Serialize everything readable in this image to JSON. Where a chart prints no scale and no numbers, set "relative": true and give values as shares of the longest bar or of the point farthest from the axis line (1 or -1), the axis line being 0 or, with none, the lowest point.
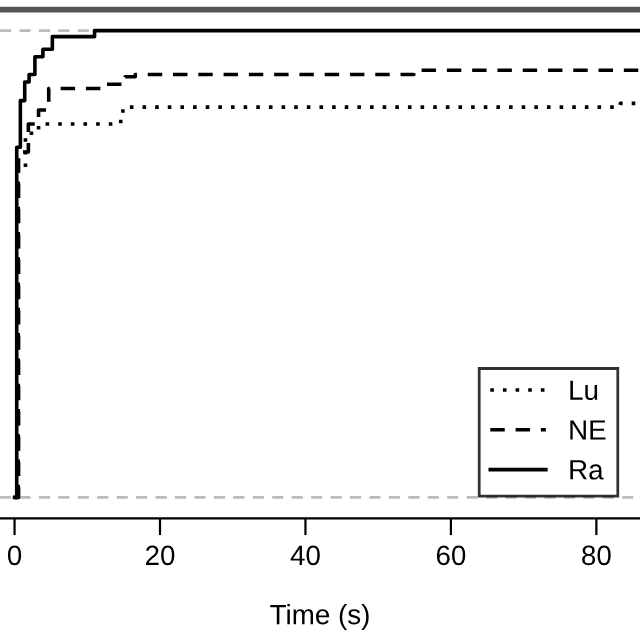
{
  "chart_data": {
    "type": "step",
    "relative": true,
    "xlabel": "Time (s)",
    "xlim": [
      -2,
      86
    ],
    "xticks": [
      0,
      20,
      40,
      60,
      80
    ],
    "grid": false,
    "legend": "bottom right",
    "series": [
      {
        "name": "Lu",
        "color": "#000000",
        "line_style": "dotted",
        "x": [
          0,
          0.5,
          1.5,
          3.3,
          14.6,
          14.9,
          83.3,
          86
        ],
        "values": [
          0,
          0.7,
          0.78,
          0.8,
          0.818,
          0.836,
          0.844,
          0.844
        ]
      },
      {
        "name": "NE",
        "color": "#000000",
        "line_style": "dashed",
        "x": [
          0,
          0.55,
          1.9,
          3.3,
          4.7,
          12.1,
          15.2,
          16.6,
          54.9,
          86
        ],
        "values": [
          0,
          0.74,
          0.8,
          0.83,
          0.876,
          0.885,
          0.901,
          0.906,
          0.915,
          0.915
        ]
      },
      {
        "name": "Ra",
        "color": "#000000",
        "line_style": "solid",
        "x": [
          0,
          0.3,
          0.8,
          1.4,
          2,
          2.8,
          3.9,
          5.2,
          11,
          86
        ],
        "values": [
          0,
          0.75,
          0.85,
          0.89,
          0.906,
          0.944,
          0.96,
          0.987,
          1.0,
          1.0
        ]
      }
    ],
    "ref_lines": [
      {
        "axis": "y",
        "value": 0,
        "label": null,
        "color": "#bbbbbb",
        "line_style": "dashed"
      },
      {
        "axis": "y",
        "value": 1,
        "label": null,
        "color": "#bbbbbb",
        "line_style": "dashed"
      }
    ]
  }
}
